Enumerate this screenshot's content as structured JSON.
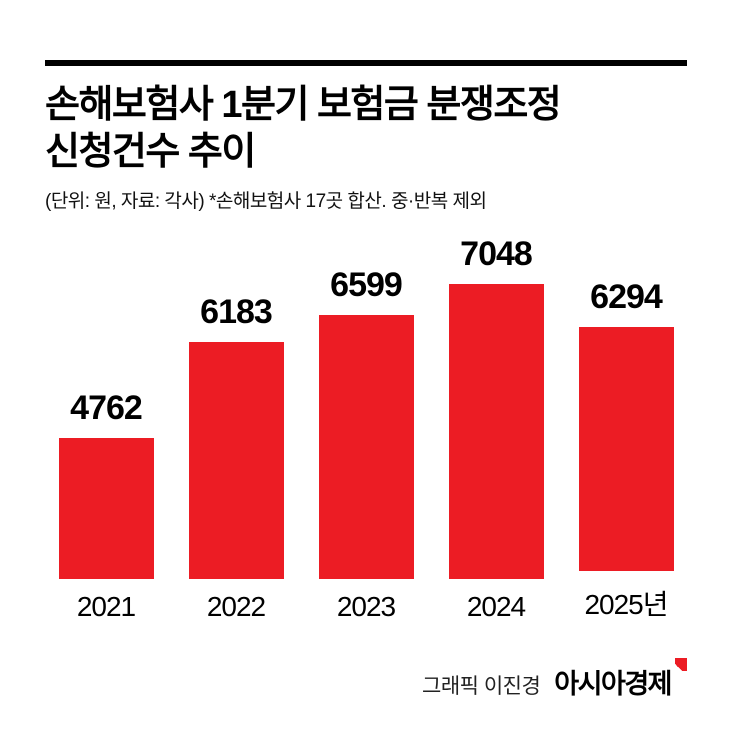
{
  "header": {
    "title_line1": "손해보험사 1분기 보험금 분쟁조정",
    "title_line2": "신청건수 추이",
    "subtitle": "(단위: 원, 자료: 각사)  *손해보험사 17곳 합산. 중·반복 제외"
  },
  "chart_data": {
    "type": "bar",
    "title": "손해보험사 1분기 보험금 분쟁조정 신청건수 추이",
    "subtitle": "(단위: 원, 자료: 각사)  *손해보험사 17곳 합산. 중·반복 제외",
    "categories": [
      "2021",
      "2022",
      "2023",
      "2024",
      "2025년"
    ],
    "values": [
      4762,
      6183,
      6599,
      7048,
      6294
    ],
    "xlabel": "",
    "ylabel": "",
    "ylim": [
      2650,
      7100
    ],
    "grid": false,
    "legend": "none",
    "bar_color": "#ec1c24",
    "value_labels": "above-bars"
  },
  "footer": {
    "credit": "그래픽 이진경",
    "brand": "아시아경제",
    "brand_mark_color": "#ec1c24"
  }
}
